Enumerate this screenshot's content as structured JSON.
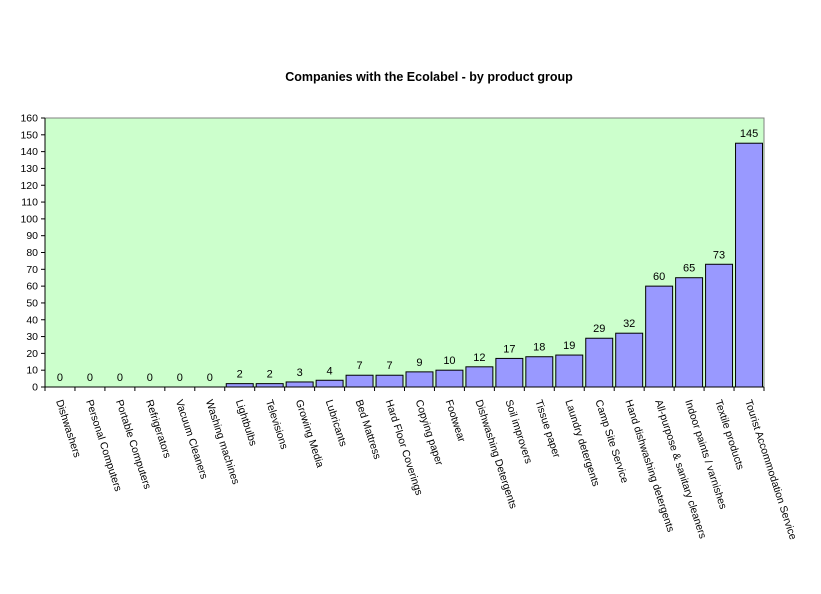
{
  "chart_data": {
    "type": "bar",
    "title": "Companies with the Ecolabel - by product group",
    "xlabel": "",
    "ylabel": "",
    "ylim": [
      0,
      160
    ],
    "ytick_step": 10,
    "grid": false,
    "legend": "none",
    "colors": {
      "plot_background": "#ccffcc",
      "bar_fill": "#9999ff",
      "bar_stroke": "#000000",
      "axis": "#000000"
    },
    "categories": [
      "Dishwashers",
      "Personal Computers",
      "Portable Computers",
      "Refrigerators",
      "Vacuum Cleaners",
      "Washing machines",
      "Lightbulbs",
      "Televisions",
      "Growing Media",
      "Lubricants",
      "Bed Mattress",
      "Hard Floor Coverings",
      "Copying paper",
      "Footwear",
      "Dishwashing Detergents",
      "Soil improvers",
      "Tissue paper",
      "Laundry detergents",
      "Camp Site Service",
      "Hand dishwashing detergents",
      "All-purpose & sanitary cleaners",
      "Indoor paints / varnishes",
      "Textile products",
      "Tourist Accommodation Service"
    ],
    "values": [
      0,
      0,
      0,
      0,
      0,
      0,
      2,
      2,
      3,
      4,
      7,
      7,
      9,
      10,
      12,
      17,
      18,
      19,
      29,
      32,
      60,
      65,
      73,
      145
    ]
  }
}
